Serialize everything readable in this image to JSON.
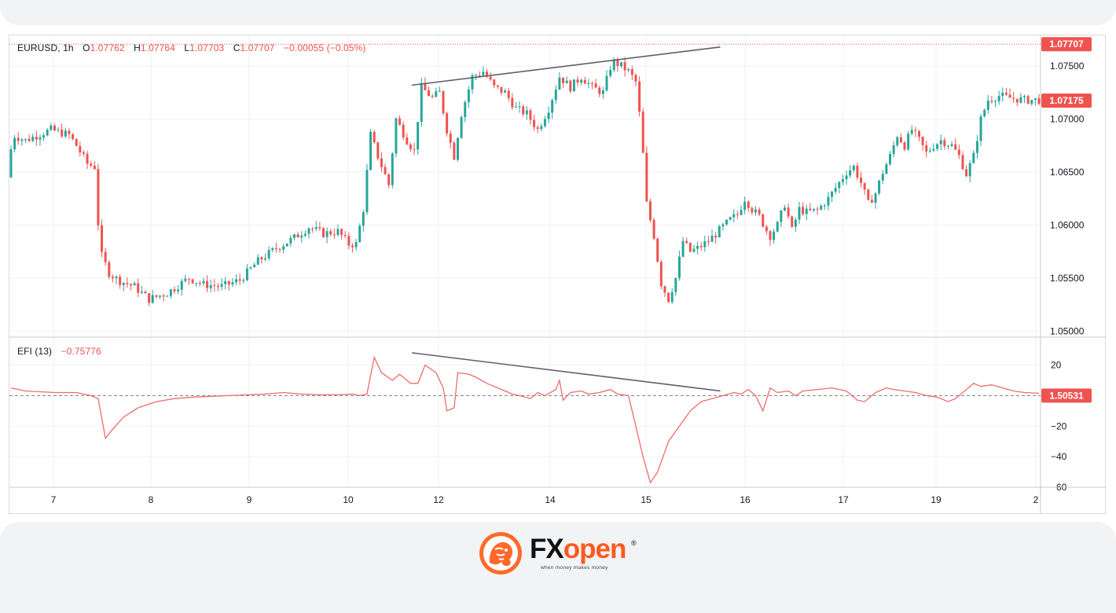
{
  "legend": {
    "symbol": "EURUSD",
    "interval": "1h",
    "open_label": "O",
    "open": "1.07762",
    "high_label": "H",
    "high": "1.07764",
    "low_label": "L",
    "low": "1.07703",
    "close_label": "C",
    "close": "1.07707",
    "change": "−0.00055 (−0.05%)"
  },
  "efi_legend": {
    "name": "EFI (13)",
    "value": "−0.75776"
  },
  "colors": {
    "up": "#26a69a",
    "down": "#ef5350",
    "efi_line": "#f06b6b",
    "trendline": "#5d606b",
    "price_badge": "#ef5350"
  },
  "logo": {
    "brand_fx": "FX",
    "brand_open": "open",
    "registered": "®",
    "tagline": "when money makes money"
  },
  "chart_data": [
    {
      "type": "candlestick",
      "title": "EURUSD, 1h",
      "yticks": [
        "1.07500",
        "1.07000",
        "1.06500",
        "1.06000",
        "1.05500",
        "1.05000"
      ],
      "ylim": [
        1.0495,
        1.0779
      ],
      "xticks": [
        "7",
        "8",
        "9",
        "10",
        "12",
        "14",
        "15",
        "16",
        "17",
        "19",
        "2"
      ],
      "grid": true,
      "price_labels": {
        "last": "1.07707",
        "current": "1.07175"
      },
      "path": [
        [
          0,
          1.0645
        ],
        [
          3,
          1.0685
        ],
        [
          10,
          1.068
        ],
        [
          24,
          1.069
        ],
        [
          34,
          1.0685
        ],
        [
          38,
          1.0675
        ],
        [
          44,
          1.0658
        ],
        [
          48,
          1.0655
        ],
        [
          51,
          1.0575
        ],
        [
          56,
          1.0555
        ],
        [
          61,
          1.0548
        ],
        [
          70,
          1.0542
        ],
        [
          78,
          1.053
        ],
        [
          88,
          1.0536
        ],
        [
          100,
          1.055
        ],
        [
          108,
          1.0544
        ],
        [
          118,
          1.0542
        ],
        [
          128,
          1.0548
        ],
        [
          138,
          1.0566
        ],
        [
          148,
          1.0578
        ],
        [
          158,
          1.0588
        ],
        [
          166,
          1.0598
        ],
        [
          174,
          1.0592
        ],
        [
          182,
          1.0594
        ],
        [
          188,
          1.0582
        ],
        [
          192,
          1.0582
        ],
        [
          196,
          1.0615
        ],
        [
          200,
          1.0685
        ],
        [
          204,
          1.0665
        ],
        [
          210,
          1.0638
        ],
        [
          214,
          1.07
        ],
        [
          220,
          1.068
        ],
        [
          224,
          1.067
        ],
        [
          228,
          1.073
        ],
        [
          234,
          1.072
        ],
        [
          238,
          1.0725
        ],
        [
          242,
          1.069
        ],
        [
          246,
          1.0665
        ],
        [
          250,
          1.0705
        ],
        [
          256,
          1.074
        ],
        [
          262,
          1.0745
        ],
        [
          268,
          1.073
        ],
        [
          274,
          1.0725
        ],
        [
          280,
          1.071
        ],
        [
          286,
          1.0705
        ],
        [
          292,
          1.069
        ],
        [
          298,
          1.071
        ],
        [
          304,
          1.074
        ],
        [
          310,
          1.073
        ],
        [
          316,
          1.074
        ],
        [
          322,
          1.073
        ],
        [
          328,
          1.0725
        ],
        [
          333,
          1.0755
        ],
        [
          338,
          1.075
        ],
        [
          342,
          1.0745
        ],
        [
          346,
          1.0735
        ],
        [
          349,
          1.069
        ],
        [
          352,
          1.062
        ],
        [
          356,
          1.059
        ],
        [
          360,
          1.0545
        ],
        [
          364,
          1.053
        ],
        [
          368,
          1.055
        ],
        [
          372,
          1.0585
        ],
        [
          376,
          1.0575
        ],
        [
          380,
          1.0578
        ],
        [
          386,
          1.0585
        ],
        [
          392,
          1.0595
        ],
        [
          398,
          1.0605
        ],
        [
          402,
          1.061
        ],
        [
          406,
          1.0625
        ],
        [
          410,
          1.0615
        ],
        [
          414,
          1.0608
        ],
        [
          418,
          1.0595
        ],
        [
          420,
          1.059
        ],
        [
          424,
          1.06
        ],
        [
          428,
          1.062
        ],
        [
          432,
          1.0595
        ],
        [
          436,
          1.0615
        ],
        [
          440,
          1.0612
        ],
        [
          446,
          1.0614
        ],
        [
          452,
          1.0625
        ],
        [
          456,
          1.0635
        ],
        [
          462,
          1.065
        ],
        [
          466,
          1.0655
        ],
        [
          470,
          1.064
        ],
        [
          474,
          1.062
        ],
        [
          478,
          1.063
        ],
        [
          482,
          1.065
        ],
        [
          486,
          1.0665
        ],
        [
          490,
          1.0685
        ],
        [
          494,
          1.0675
        ],
        [
          498,
          1.069
        ],
        [
          502,
          1.068
        ],
        [
          506,
          1.0668
        ],
        [
          510,
          1.0675
        ],
        [
          514,
          1.068
        ],
        [
          520,
          1.0675
        ],
        [
          524,
          1.0665
        ],
        [
          528,
          1.0648
        ],
        [
          532,
          1.0665
        ],
        [
          536,
          1.07
        ],
        [
          540,
          1.0718
        ],
        [
          546,
          1.0722
        ],
        [
          552,
          1.072
        ],
        [
          560,
          1.0718
        ],
        [
          566,
          1.0718
        ]
      ],
      "trendline": [
        [
          1.0732,
          0.39
        ],
        [
          1.0768,
          0.69
        ]
      ]
    },
    {
      "type": "line",
      "title": "EFI (13)",
      "yticks": [
        "20",
        "-20",
        "-40",
        "-60"
      ],
      "ylim": [
        -61,
        30
      ],
      "zero_line": true,
      "current_label": "1.50531",
      "points": [
        [
          0,
          5
        ],
        [
          8,
          3
        ],
        [
          24,
          2
        ],
        [
          36,
          2
        ],
        [
          44,
          0
        ],
        [
          48,
          -2
        ],
        [
          52,
          -28
        ],
        [
          56,
          -22
        ],
        [
          62,
          -14
        ],
        [
          70,
          -8
        ],
        [
          80,
          -4
        ],
        [
          90,
          -2
        ],
        [
          100,
          -1
        ],
        [
          120,
          0
        ],
        [
          140,
          1
        ],
        [
          150,
          2
        ],
        [
          160,
          1
        ],
        [
          170,
          0.5
        ],
        [
          180,
          0.5
        ],
        [
          188,
          1
        ],
        [
          192,
          0
        ],
        [
          196,
          1
        ],
        [
          200,
          25
        ],
        [
          204,
          15
        ],
        [
          210,
          10
        ],
        [
          214,
          14
        ],
        [
          220,
          8
        ],
        [
          224,
          8
        ],
        [
          228,
          20
        ],
        [
          234,
          15
        ],
        [
          238,
          5
        ],
        [
          240,
          -10
        ],
        [
          244,
          -8
        ],
        [
          246,
          15
        ],
        [
          252,
          14
        ],
        [
          256,
          12
        ],
        [
          262,
          8
        ],
        [
          268,
          5
        ],
        [
          272,
          3
        ],
        [
          276,
          1
        ],
        [
          280,
          0
        ],
        [
          286,
          -2
        ],
        [
          290,
          2
        ],
        [
          294,
          0
        ],
        [
          300,
          4
        ],
        [
          302,
          10
        ],
        [
          304,
          -3
        ],
        [
          308,
          2
        ],
        [
          314,
          3
        ],
        [
          318,
          1
        ],
        [
          324,
          2
        ],
        [
          330,
          4
        ],
        [
          334,
          1
        ],
        [
          340,
          0
        ],
        [
          344,
          -20
        ],
        [
          348,
          -40
        ],
        [
          352,
          -57
        ],
        [
          356,
          -50
        ],
        [
          362,
          -30
        ],
        [
          368,
          -20
        ],
        [
          374,
          -10
        ],
        [
          380,
          -4
        ],
        [
          386,
          -2
        ],
        [
          392,
          0
        ],
        [
          398,
          2
        ],
        [
          402,
          1
        ],
        [
          406,
          4
        ],
        [
          410,
          0
        ],
        [
          414,
          -10
        ],
        [
          418,
          5
        ],
        [
          422,
          2
        ],
        [
          428,
          3
        ],
        [
          432,
          0
        ],
        [
          436,
          3
        ],
        [
          444,
          4
        ],
        [
          452,
          5
        ],
        [
          460,
          3
        ],
        [
          466,
          -3
        ],
        [
          470,
          -4
        ],
        [
          476,
          2
        ],
        [
          482,
          5
        ],
        [
          486,
          4
        ],
        [
          492,
          3
        ],
        [
          498,
          2
        ],
        [
          504,
          0
        ],
        [
          510,
          -1
        ],
        [
          516,
          -4
        ],
        [
          520,
          -2
        ],
        [
          526,
          4
        ],
        [
          530,
          8
        ],
        [
          534,
          6
        ],
        [
          540,
          7
        ],
        [
          546,
          5
        ],
        [
          552,
          3
        ],
        [
          558,
          2
        ],
        [
          566,
          1.5
        ]
      ],
      "trendline": [
        [
          28,
          0.39
        ],
        [
          3,
          0.69
        ]
      ]
    }
  ]
}
